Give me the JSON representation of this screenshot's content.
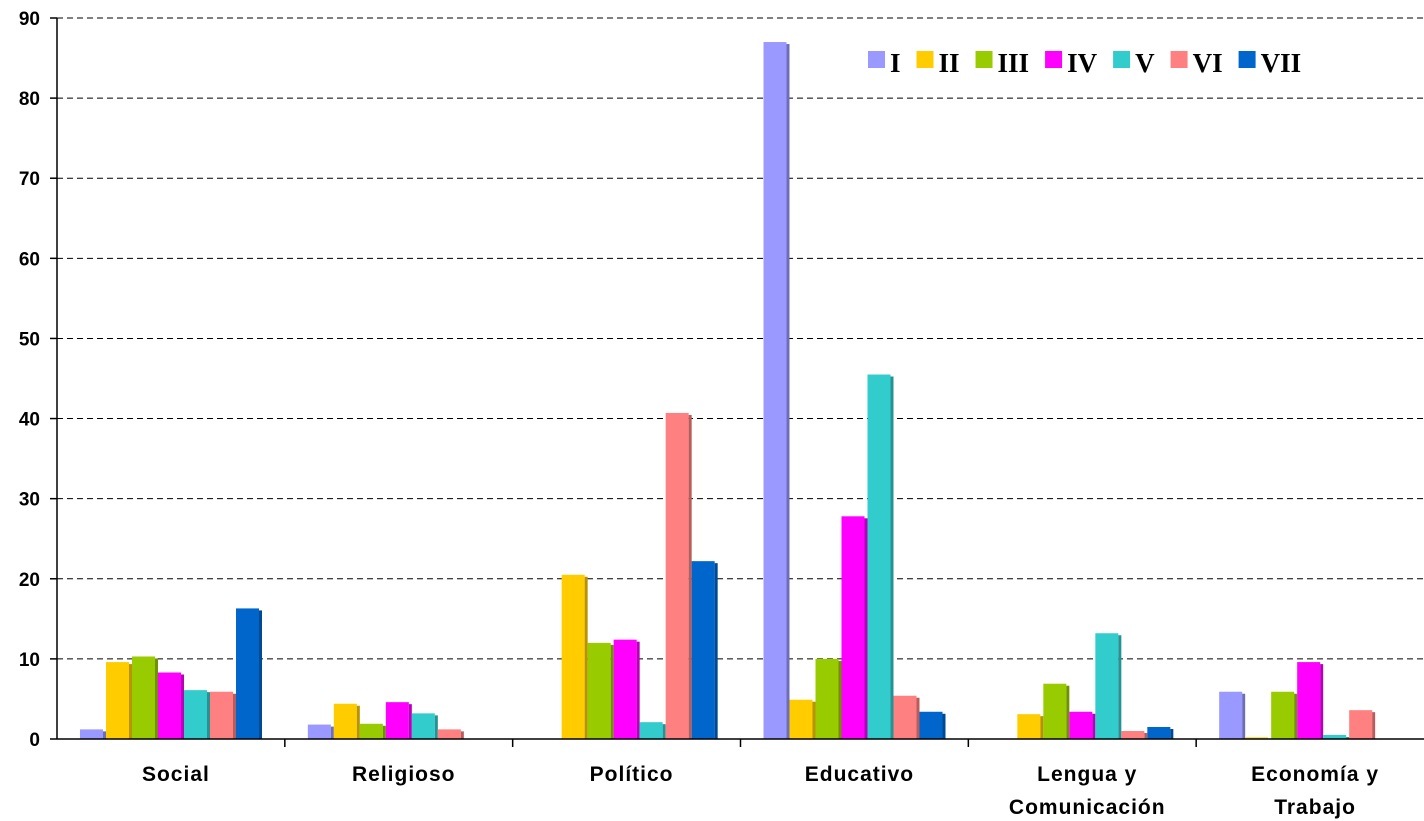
{
  "chart_data": {
    "type": "bar",
    "categories": [
      [
        "Social"
      ],
      [
        "Religioso"
      ],
      [
        "Político"
      ],
      [
        "Educativo"
      ],
      [
        "Lengua y",
        "Comunicación"
      ],
      [
        "Economía y",
        "Trabajo"
      ]
    ],
    "series": [
      {
        "name": "I",
        "color": "#9999ff",
        "values": [
          1.2,
          1.8,
          0,
          87,
          0,
          5.9
        ]
      },
      {
        "name": "II",
        "color": "#ffcc00",
        "values": [
          9.6,
          4.4,
          20.5,
          4.9,
          3.1,
          0.2
        ]
      },
      {
        "name": "III",
        "color": "#99cc00",
        "values": [
          10.3,
          1.9,
          12.0,
          10.0,
          6.9,
          5.9
        ]
      },
      {
        "name": "IV",
        "color": "#ff00ff",
        "values": [
          8.3,
          4.6,
          12.4,
          27.8,
          3.4,
          9.6
        ]
      },
      {
        "name": "V",
        "color": "#33cccc",
        "values": [
          6.1,
          3.2,
          2.1,
          45.5,
          13.2,
          0.5
        ]
      },
      {
        "name": "VI",
        "color": "#ff8080",
        "values": [
          5.9,
          1.2,
          40.7,
          5.4,
          1.0,
          3.6
        ]
      },
      {
        "name": "VII",
        "color": "#0066cc",
        "values": [
          16.3,
          0,
          22.2,
          3.4,
          1.5,
          0
        ]
      }
    ],
    "yticks": [
      0,
      10,
      20,
      30,
      40,
      50,
      60,
      70,
      80,
      90
    ],
    "ylim": [
      0,
      90
    ],
    "grid": true,
    "legend_position": "top-right",
    "title": "",
    "xlabel": "",
    "ylabel": ""
  }
}
